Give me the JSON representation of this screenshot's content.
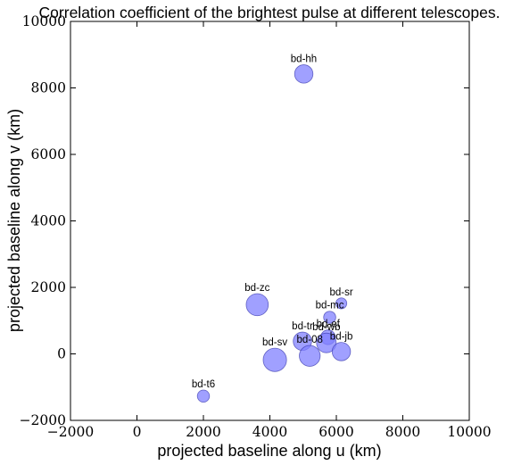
{
  "chart_data": {
    "type": "scatter",
    "title": "Correlation coefficient of the brightest pulse at different telescopes.",
    "xlabel": "projected baseline along u (km)",
    "ylabel": "projected baseline along v (km)",
    "xlim": [
      -2000,
      10000
    ],
    "ylim": [
      -2000,
      10000
    ],
    "xticks": [
      -2000,
      0,
      2000,
      4000,
      6000,
      8000,
      10000
    ],
    "yticks": [
      -2000,
      0,
      2000,
      4000,
      6000,
      8000,
      10000
    ],
    "xtick_labels": [
      "−2000",
      "0",
      "2000",
      "4000",
      "6000",
      "8000",
      "10000"
    ],
    "ytick_labels": [
      "−2000",
      "0",
      "2000",
      "4000",
      "6000",
      "8000",
      "10000"
    ],
    "grid": false,
    "marker_color": "#8080ff",
    "marker_edge_color": "#3333aa",
    "points": [
      {
        "label": "bd-hh",
        "x": 5020,
        "y": 8420,
        "size": 0.45
      },
      {
        "label": "bd-zc",
        "x": 3620,
        "y": 1480,
        "size": 0.6
      },
      {
        "label": "bd-sr",
        "x": 6150,
        "y": 1520,
        "size": 0.15
      },
      {
        "label": "bd-mc",
        "x": 5800,
        "y": 1100,
        "size": 0.2
      },
      {
        "label": "bd-tr",
        "x": 4980,
        "y": 380,
        "size": 0.45
      },
      {
        "label": "bd-ef",
        "x": 5750,
        "y": 500,
        "size": 0.3
      },
      {
        "label": "bd-wb",
        "x": 5700,
        "y": 330,
        "size": 0.5
      },
      {
        "label": "bd-jb",
        "x": 6150,
        "y": 70,
        "size": 0.45
      },
      {
        "label": "bd-08",
        "x": 5200,
        "y": -60,
        "size": 0.55
      },
      {
        "label": "bd-sv",
        "x": 4150,
        "y": -180,
        "size": 0.65
      },
      {
        "label": "bd-t6",
        "x": 2000,
        "y": -1270,
        "size": 0.2
      }
    ]
  }
}
